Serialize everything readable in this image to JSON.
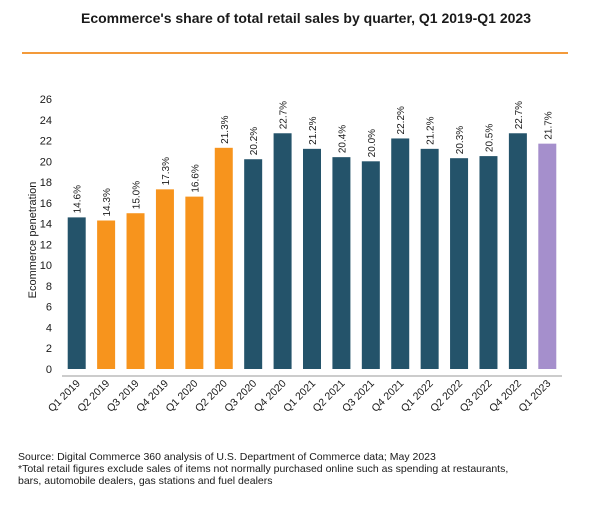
{
  "chart_data": {
    "type": "bar",
    "title": "Ecommerce's share of total retail sales by quarter, Q1 2019-Q1 2023",
    "xlabel": "",
    "ylabel": "Ecommerce penetration",
    "ylim": [
      0,
      26
    ],
    "yticks": [
      0,
      2,
      4,
      6,
      8,
      10,
      12,
      14,
      16,
      18,
      20,
      22,
      24,
      26
    ],
    "grid": false,
    "categories": [
      "Q1 2019",
      "Q2 2019",
      "Q3 2019",
      "Q4 2019",
      "Q1 2020",
      "Q2 2020",
      "Q3 2020",
      "Q4 2020",
      "Q1 2021",
      "Q2 2021",
      "Q3 2021",
      "Q4 2021",
      "Q1 2022",
      "Q2 2022",
      "Q3 2022",
      "Q4 2022",
      "Q1 2023"
    ],
    "values": [
      14.6,
      14.3,
      15.0,
      17.3,
      16.6,
      21.3,
      20.2,
      22.7,
      21.2,
      20.4,
      20.0,
      22.2,
      21.2,
      20.3,
      20.5,
      22.7,
      21.7
    ],
    "labels": [
      "14.6%",
      "14.3%",
      "15.0%",
      "17.3%",
      "16.6%",
      "21.3%",
      "20.2%",
      "22.7%",
      "21.2%",
      "20.4%",
      "20.0%",
      "22.2%",
      "21.2%",
      "20.3%",
      "20.5%",
      "22.7%",
      "21.7%"
    ],
    "bar_colors": [
      "#24536a",
      "#f7941d",
      "#f7941d",
      "#f7941d",
      "#f7941d",
      "#f7941d",
      "#24536a",
      "#24536a",
      "#24536a",
      "#24536a",
      "#24536a",
      "#24536a",
      "#24536a",
      "#24536a",
      "#24536a",
      "#24536a",
      "#a58fcc"
    ]
  },
  "colors": {
    "accent": "#f39a3a",
    "axis": "#9a9a9a"
  },
  "source": {
    "line1": "Source: Digital Commerce 360 analysis of U.S. Department of Commerce data; May 2023",
    "line2": "*Total retail figures exclude sales of items not normally purchased online such as spending at restaurants,",
    "line3": "bars, automobile dealers, gas stations and fuel dealers"
  }
}
